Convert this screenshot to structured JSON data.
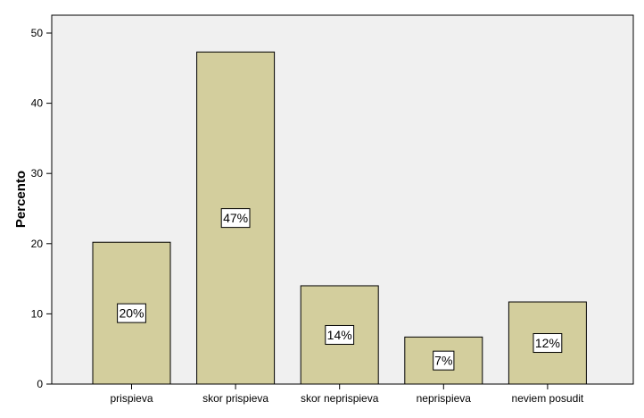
{
  "chart_data": {
    "type": "bar",
    "title": "",
    "xlabel": "",
    "ylabel": "Percento",
    "ylim": [
      0,
      50
    ],
    "yticks": [
      0,
      10,
      20,
      30,
      40,
      50
    ],
    "grid": false,
    "categories": [
      "prispieva",
      "skor prispieva",
      "skor neprispieva",
      "neprispieva",
      "neviem posudit"
    ],
    "values": [
      20.2,
      47.3,
      14.0,
      6.7,
      11.7
    ],
    "data_labels": [
      "20%",
      "47%",
      "14%",
      "7%",
      "12%"
    ],
    "colors": {
      "plot_background": "#f0f0f0",
      "bar_fill": "#d3ce9d",
      "bar_stroke": "#000000",
      "label_box_fill": "#ffffff"
    }
  }
}
